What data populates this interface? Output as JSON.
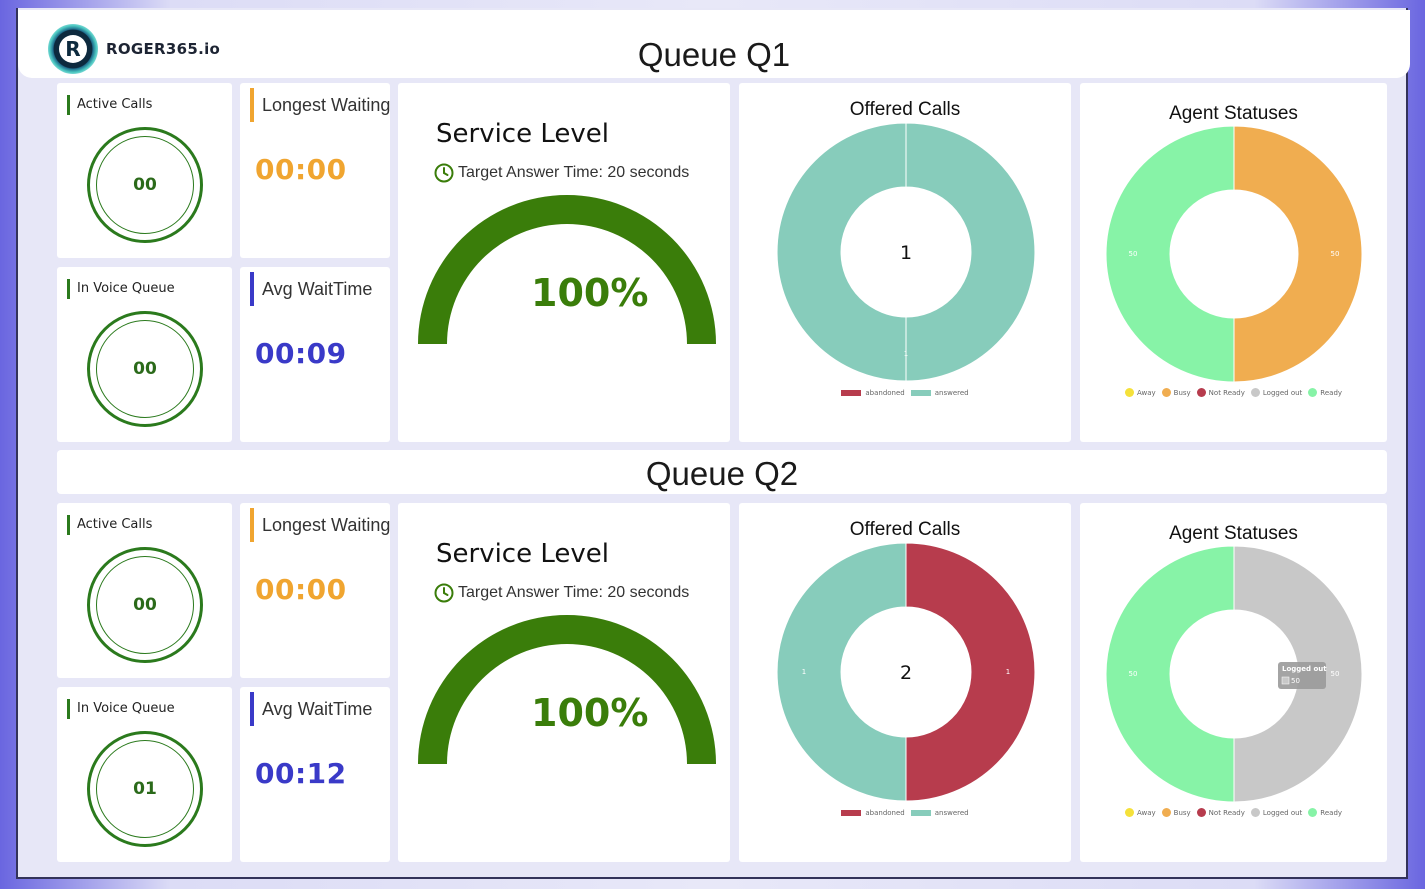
{
  "brand": {
    "logo_letter": "R",
    "logo_text": "ROGER365.io"
  },
  "colors": {
    "green_ring": "#2b7a1d",
    "orange": "#f0a530",
    "blue": "#3a3ac8",
    "gauge_green": "#3a7d0a",
    "abandoned": "#b73c4d",
    "answered": "#87ccbb",
    "away": "#f5e13a",
    "busy": "#f0ad50",
    "not_ready": "#b73c4d",
    "logged_out": "#c8c8c8",
    "ready": "#87f3a7"
  },
  "icons": {
    "clock": "clock-icon"
  },
  "queues": [
    {
      "title": "Queue Q1",
      "active_calls": {
        "label": "Active Calls",
        "value": "00"
      },
      "in_voice_queue": {
        "label": "In Voice Queue",
        "value": "00"
      },
      "longest_waiting": {
        "label": "Longest Waiting",
        "value": "00:00"
      },
      "avg_wait": {
        "label": "Avg  WaitTime",
        "value": "00:09"
      },
      "service_level": {
        "title": "Service Level",
        "target": "Target Answer Time: 20 seconds",
        "value_text": "100%",
        "value": 100
      },
      "offered_calls": {
        "title": "Offered Calls",
        "center": "1",
        "segments": [
          {
            "name": "abandoned",
            "value": 0
          },
          {
            "name": "answered",
            "value": 1,
            "label": "1"
          }
        ],
        "legend": [
          "abandoned",
          "answered"
        ]
      },
      "agent_statuses": {
        "title": "Agent Statuses",
        "segments": [
          {
            "name": "Busy",
            "value": 50,
            "label": "50"
          },
          {
            "name": "Ready",
            "value": 50,
            "label": "50"
          }
        ],
        "legend": [
          "Away",
          "Busy",
          "Not Ready",
          "Logged out",
          "Ready"
        ]
      }
    },
    {
      "title": "Queue Q2",
      "active_calls": {
        "label": "Active Calls",
        "value": "00"
      },
      "in_voice_queue": {
        "label": "In Voice Queue",
        "value": "01"
      },
      "longest_waiting": {
        "label": "Longest Waiting",
        "value": "00:00"
      },
      "avg_wait": {
        "label": "Avg  WaitTime",
        "value": "00:12"
      },
      "service_level": {
        "title": "Service Level",
        "target": "Target Answer Time: 20 seconds",
        "value_text": "100%",
        "value": 100
      },
      "offered_calls": {
        "title": "Offered Calls",
        "center": "2",
        "segments": [
          {
            "name": "abandoned",
            "value": 1,
            "label": "1"
          },
          {
            "name": "answered",
            "value": 1,
            "label": "1"
          }
        ],
        "legend": [
          "abandoned",
          "answered"
        ]
      },
      "agent_statuses": {
        "title": "Agent Statuses",
        "segments": [
          {
            "name": "Logged out",
            "value": 50,
            "label": "50"
          },
          {
            "name": "Ready",
            "value": 50,
            "label": "50"
          }
        ],
        "legend": [
          "Away",
          "Busy",
          "Not Ready",
          "Logged out",
          "Ready"
        ],
        "tooltip": {
          "title": "Logged out",
          "value": "50"
        }
      }
    }
  ]
}
